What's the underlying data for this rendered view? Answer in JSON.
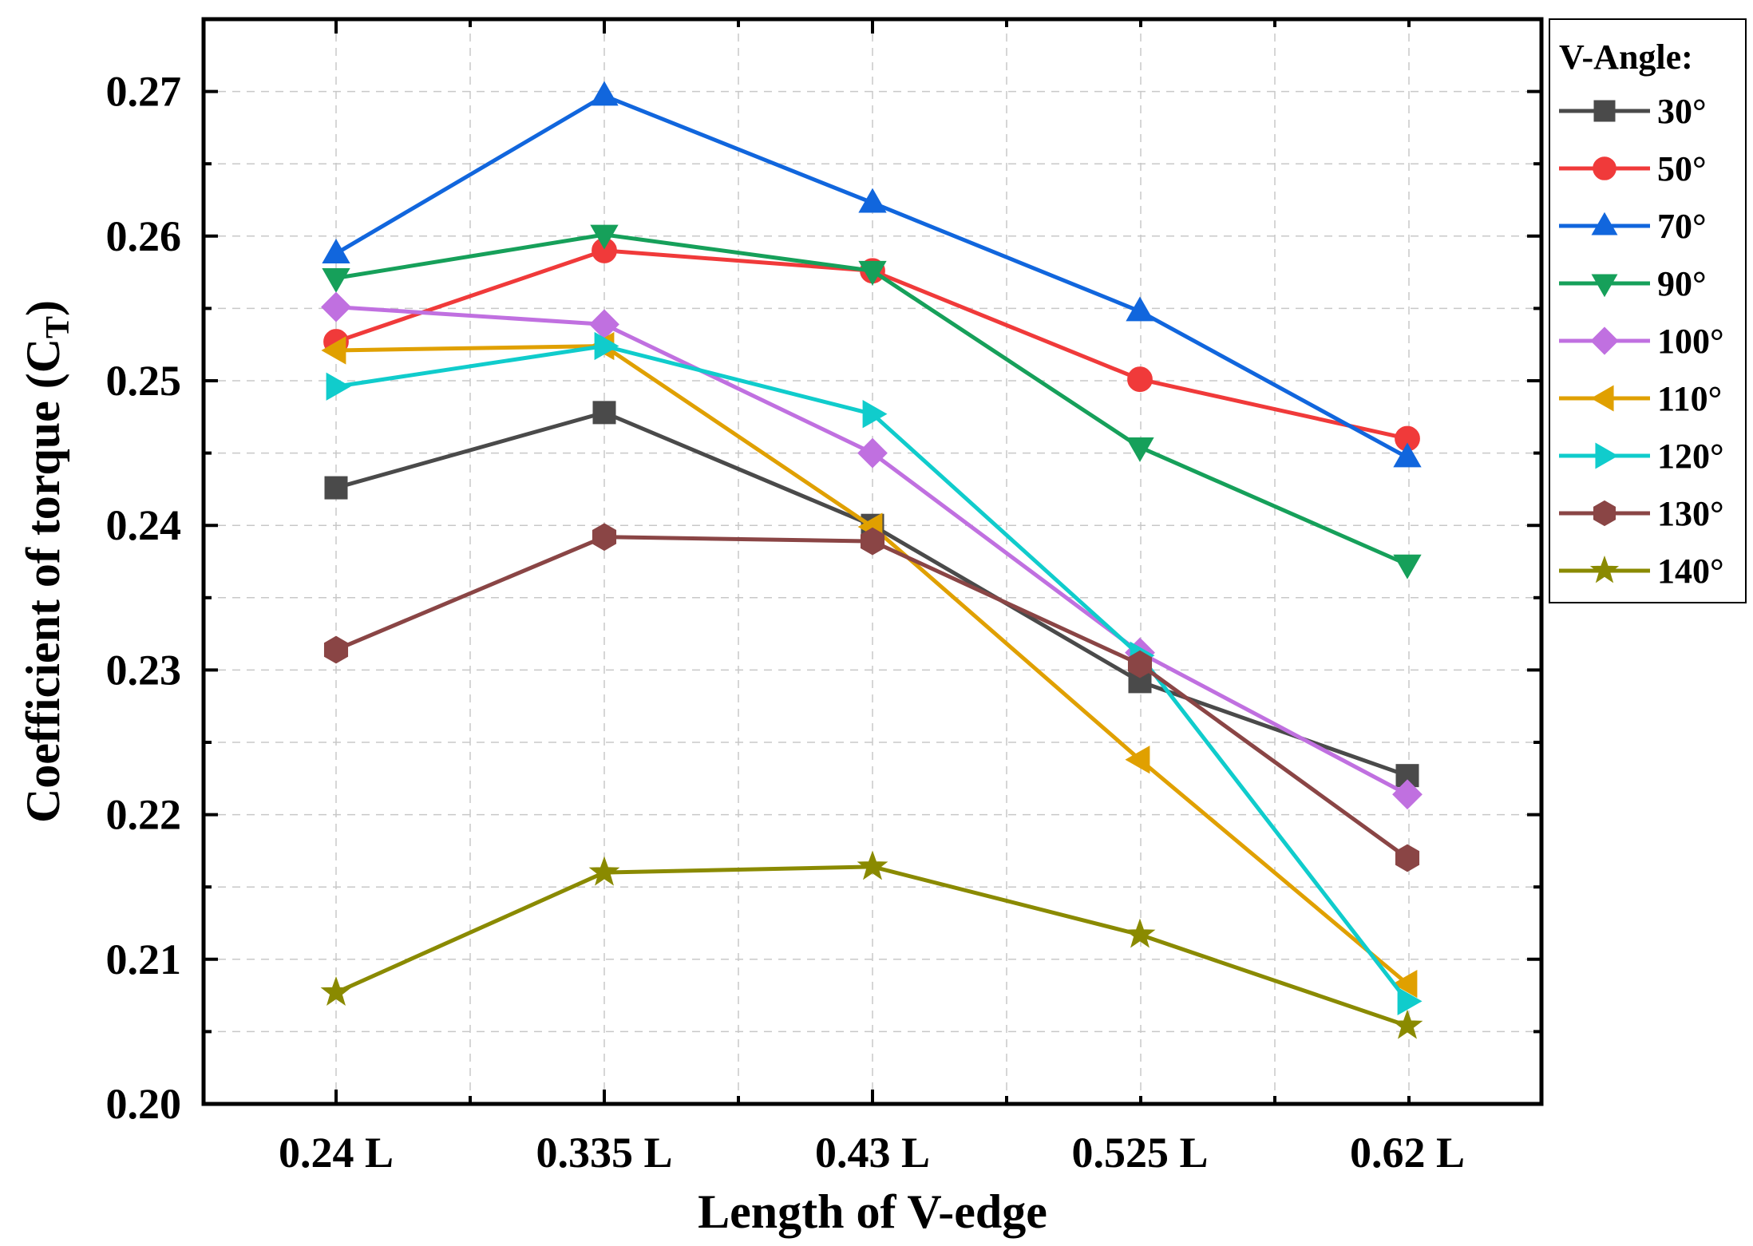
{
  "chart_data": {
    "type": "line",
    "xlabel": "Length of V-edge",
    "ylabel": "Coefficient of torque (C",
    "ylabel_sub": "T",
    "ylabel_close": ")",
    "categories": [
      "0.24 L",
      "0.335 L",
      "0.43 L",
      "0.525 L",
      "0.62 L"
    ],
    "ylim": [
      0.2,
      0.275
    ],
    "yticks": [
      0.2,
      0.21,
      0.22,
      0.23,
      0.24,
      0.25,
      0.26,
      0.27
    ],
    "ytick_labels": [
      "0.20",
      "0.21",
      "0.22",
      "0.23",
      "0.24",
      "0.25",
      "0.26",
      "0.27"
    ],
    "grid": true,
    "legend_position": "right",
    "legend_title": "V-Angle:",
    "series": [
      {
        "name": "30°",
        "color": "#4a4a4a",
        "marker": "square",
        "values": [
          0.2426,
          0.2478,
          0.24,
          0.2292,
          0.2227
        ]
      },
      {
        "name": "50°",
        "color": "#f03a3a",
        "marker": "circle",
        "values": [
          0.2527,
          0.259,
          0.2576,
          0.2501,
          0.246
        ]
      },
      {
        "name": "70°",
        "color": "#1166dd",
        "marker": "triangle-up",
        "values": [
          0.2588,
          0.2697,
          0.2623,
          0.2548,
          0.2447
        ]
      },
      {
        "name": "90°",
        "color": "#16a05a",
        "marker": "triangle-down",
        "values": [
          0.2571,
          0.2601,
          0.2576,
          0.2454,
          0.2373
        ]
      },
      {
        "name": "100°",
        "color": "#c070e0",
        "marker": "diamond",
        "values": [
          0.2551,
          0.2539,
          0.245,
          0.2312,
          0.2214
        ]
      },
      {
        "name": "110°",
        "color": "#e0a000",
        "marker": "triangle-left",
        "values": [
          0.2521,
          0.2524,
          0.2399,
          0.2238,
          0.2083
        ]
      },
      {
        "name": "120°",
        "color": "#10cccc",
        "marker": "triangle-right",
        "values": [
          0.2496,
          0.2524,
          0.2477,
          0.231,
          0.2071
        ]
      },
      {
        "name": "130°",
        "color": "#8a4545",
        "marker": "hexagon",
        "values": [
          0.2314,
          0.2392,
          0.2389,
          0.2304,
          0.217
        ]
      },
      {
        "name": "140°",
        "color": "#8a8a00",
        "marker": "star",
        "values": [
          0.2077,
          0.216,
          0.2164,
          0.2117,
          0.2054
        ]
      }
    ]
  }
}
